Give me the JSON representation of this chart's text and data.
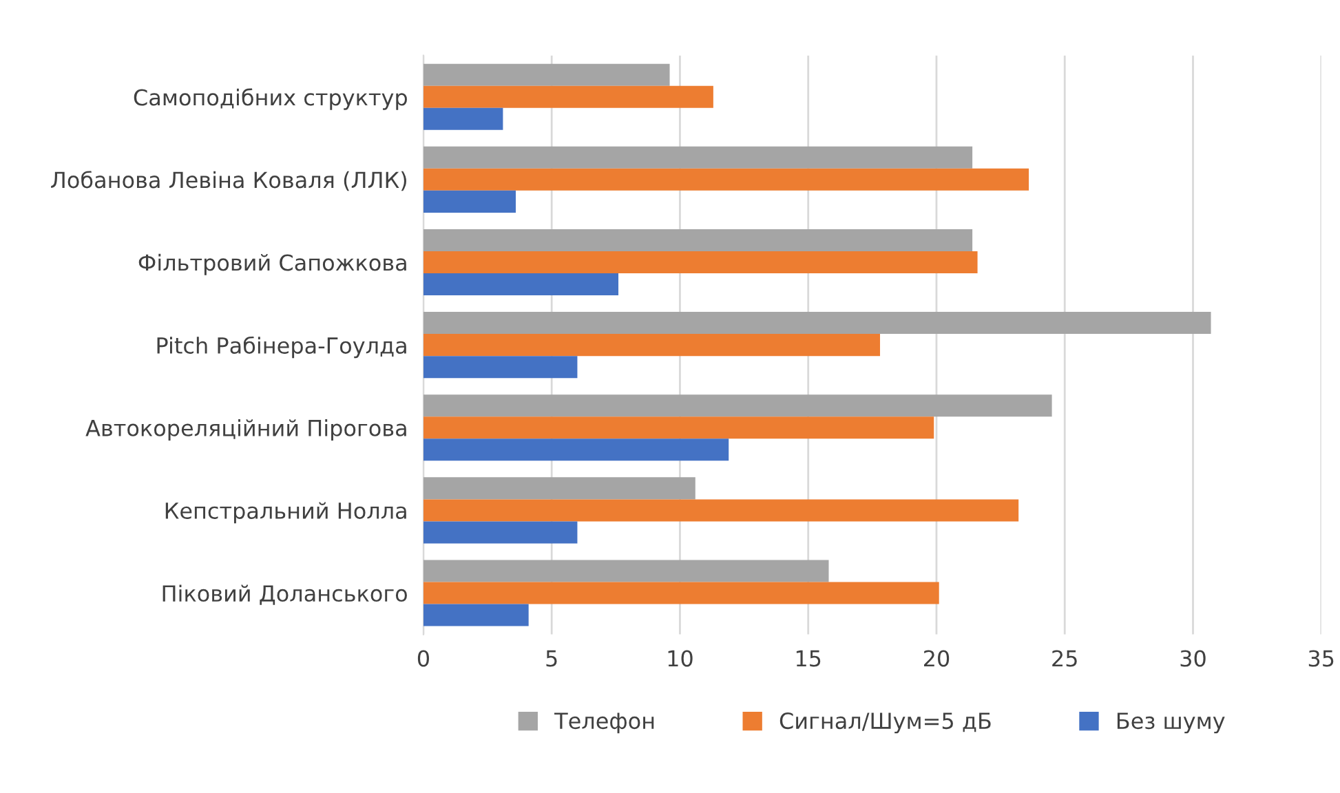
{
  "chart_data": {
    "type": "bar",
    "orientation": "horizontal",
    "categories": [
      "Самоподібних структур",
      "Лобанова Левіна Коваля (ЛЛК)",
      "Фільтровий Сапожкова",
      "Pitch Рабінера-Гоулда",
      "Автокореляційний Пірогова",
      "Кепстральний Нолла",
      "Піковий Доланського"
    ],
    "series": [
      {
        "name": "Телефон",
        "color": "#a5a5a5",
        "values": [
          9.6,
          21.4,
          21.4,
          30.7,
          24.5,
          10.6,
          15.8
        ]
      },
      {
        "name": "Сигнал/Шум=5 дБ",
        "color": "#ed7d31",
        "values": [
          11.3,
          23.6,
          21.6,
          17.8,
          19.9,
          23.2,
          20.1
        ]
      },
      {
        "name": "Без шуму",
        "color": "#4472c4",
        "values": [
          3.1,
          3.6,
          7.6,
          6.0,
          11.9,
          6.0,
          4.1
        ]
      }
    ],
    "xlim": [
      0,
      35
    ],
    "xticks": [
      0,
      5,
      10,
      15,
      20,
      25,
      30,
      35
    ],
    "grid": "x",
    "legend": "bottom"
  }
}
